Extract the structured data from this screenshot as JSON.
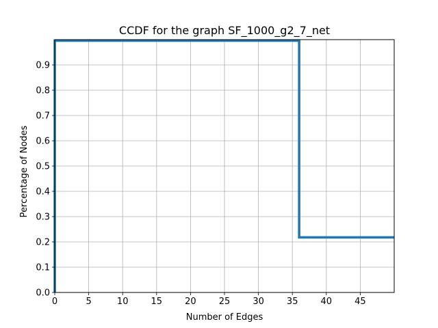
{
  "chart_data": {
    "type": "line",
    "drawstyle": "step",
    "title": "CCDF for the graph SF_1000_g2_7_net",
    "xlabel": "Number of Edges",
    "ylabel": "Percentage of Nodes",
    "xlim": [
      0,
      50
    ],
    "ylim": [
      0,
      1.0
    ],
    "xticks": [
      0,
      5,
      10,
      15,
      20,
      25,
      30,
      35,
      40,
      45
    ],
    "xtick_labels": [
      "0",
      "5",
      "10",
      "15",
      "20",
      "25",
      "30",
      "35",
      "40",
      "45"
    ],
    "yticks": [
      0.0,
      0.1,
      0.2,
      0.3,
      0.4,
      0.5,
      0.6,
      0.7,
      0.8,
      0.9
    ],
    "ytick_labels": [
      "0.0",
      "0.1",
      "0.2",
      "0.3",
      "0.4",
      "0.5",
      "0.6",
      "0.7",
      "0.8",
      "0.9"
    ],
    "grid": true,
    "legend": "none",
    "series": [
      {
        "color": "#1f77b4",
        "x": [
          0,
          0,
          36,
          36,
          50
        ],
        "y": [
          0,
          0.996,
          0.996,
          0.218,
          0.218
        ]
      }
    ]
  }
}
